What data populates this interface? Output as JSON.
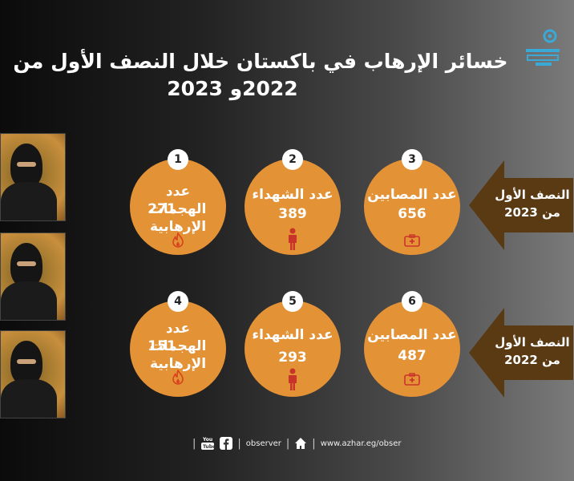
{
  "title": {
    "line1": "خسائر الإرهاب في باكستان خلال النصف الأول من",
    "line2": "2022و 2023"
  },
  "rows": [
    {
      "period": "النصف الأول من 2023",
      "items": [
        {
          "num": "1",
          "label": "عدد الهجمات الإرهابية",
          "value": "271",
          "icon": "fire-icon"
        },
        {
          "num": "2",
          "label": "عدد الشهداء",
          "value": "389",
          "icon": "person-icon"
        },
        {
          "num": "3",
          "label": "عدد المصابين",
          "value": "656",
          "icon": "medkit-icon"
        }
      ]
    },
    {
      "period": "النصف الأول من 2022",
      "items": [
        {
          "num": "4",
          "label": "عدد الهجمات الإرهابية",
          "value": "151",
          "icon": "fire-icon"
        },
        {
          "num": "5",
          "label": "عدد الشهداء",
          "value": "293",
          "icon": "person-icon"
        },
        {
          "num": "6",
          "label": "عدد المصابين",
          "value": "487",
          "icon": "medkit-icon"
        }
      ]
    }
  ],
  "footer": {
    "handle": "observer",
    "url": "www.azhar.eg/obser"
  },
  "colors": {
    "accent": "#e39236",
    "arrow": "#5a3a12"
  }
}
